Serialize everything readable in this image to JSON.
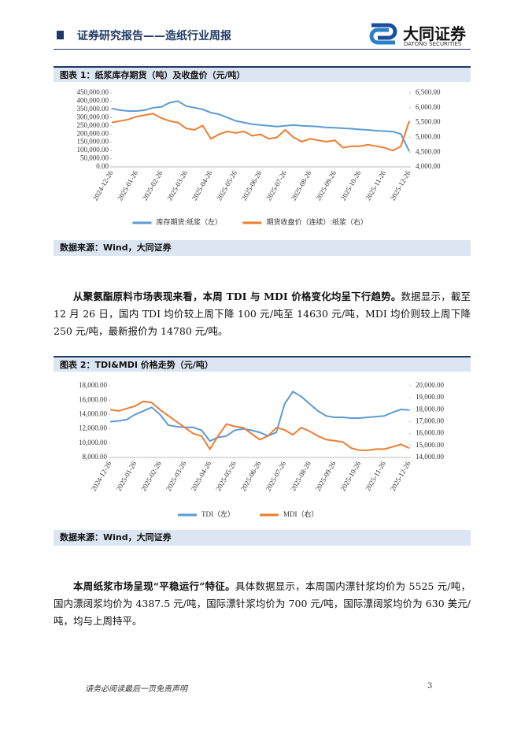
{
  "header": {
    "title": "证券研究报告——造纸行业周报",
    "brand": "大同证券",
    "brand_en": "DATONG SECURITIES"
  },
  "figures": [
    {
      "caption": "图表 1：纸浆库存期货（吨）及收盘价（元/吨）",
      "source": "数据来源：Wind，大同证券"
    },
    {
      "caption": "图表 2：TDI&MDI 价格走势（元/吨）",
      "source": "数据来源：Wind，大同证券"
    }
  ],
  "chart_data": [
    {
      "type": "line",
      "categories": [
        "2024-12-26",
        null,
        null,
        "2025-01-26",
        null,
        null,
        "2025-02-26",
        null,
        null,
        "2025-03-26",
        null,
        null,
        "2025-04-26",
        null,
        null,
        "2025-05-26",
        null,
        null,
        "2025-06-26",
        null,
        null,
        "2025-07-26",
        null,
        null,
        "2025-08-26",
        null,
        null,
        "2025-09-26",
        null,
        null,
        "2025-10-26",
        null,
        null,
        "2025-11-26",
        null,
        null,
        "2025-12-26"
      ],
      "series": [
        {
          "name": "库存期货:纸浆（左）",
          "color": "#5b9bd5",
          "axis": "y",
          "values": [
            355000,
            345000,
            340000,
            340000,
            345000,
            360000,
            365000,
            390000,
            400000,
            370000,
            360000,
            350000,
            330000,
            320000,
            300000,
            280000,
            270000,
            260000,
            255000,
            250000,
            245000,
            250000,
            255000,
            250000,
            248000,
            245000,
            240000,
            238000,
            235000,
            232000,
            228000,
            225000,
            220000,
            218000,
            215000,
            200000,
            95000
          ]
        },
        {
          "name": "期货收盘价（连续）:纸浆（右）",
          "color": "#ed7d31",
          "axis": "y2",
          "values": [
            5500,
            5550,
            5600,
            5700,
            5750,
            5800,
            5650,
            5550,
            5500,
            5300,
            5250,
            5400,
            4950,
            5100,
            5200,
            5150,
            5200,
            5050,
            5100,
            4950,
            5000,
            5250,
            5000,
            4850,
            4950,
            4900,
            4850,
            4900,
            4650,
            4700,
            4700,
            4750,
            4700,
            4650,
            4550,
            4700,
            5550
          ]
        }
      ],
      "ylim": [
        0,
        450000
      ],
      "yticks": [
        {
          "value": 0,
          "label": "0.00"
        },
        {
          "value": 50000,
          "label": "50,000.00"
        },
        {
          "value": 100000,
          "label": "100,000.00"
        },
        {
          "value": 150000,
          "label": "150,000.00"
        },
        {
          "value": 200000,
          "label": "200,000.00"
        },
        {
          "value": 250000,
          "label": "250,000.00"
        },
        {
          "value": 300000,
          "label": "300,000.00"
        },
        {
          "value": 350000,
          "label": "350,000.00"
        },
        {
          "value": 400000,
          "label": "400,000.00"
        },
        {
          "value": 450000,
          "label": "450,000.00"
        }
      ],
      "y2lim": [
        4000,
        6500
      ],
      "y2ticks": [
        {
          "value": 4000,
          "label": "4,000.00"
        },
        {
          "value": 4500,
          "label": "4,500.00"
        },
        {
          "value": 5000,
          "label": "5,000.00"
        },
        {
          "value": 5500,
          "label": "5,500.00"
        },
        {
          "value": 6000,
          "label": "6,000.00"
        },
        {
          "value": 6500,
          "label": "6,500.00"
        }
      ],
      "legend": "bottom"
    },
    {
      "type": "line",
      "categories": [
        "2024-12-26",
        null,
        null,
        "2025-01-26",
        null,
        null,
        "2025-02-26",
        null,
        null,
        "2025-03-26",
        null,
        null,
        "2025-04-26",
        null,
        null,
        "2025-05-26",
        null,
        null,
        "2025-06-26",
        null,
        null,
        "2025-07-26",
        null,
        null,
        "2025-08-26",
        null,
        null,
        "2025-09-26",
        null,
        null,
        "2025-10-26",
        null,
        null,
        "2025-11-26",
        null,
        null,
        "2025-12-26"
      ],
      "series": [
        {
          "name": "TDI（左）",
          "color": "#5b9bd5",
          "axis": "y",
          "values": [
            13000,
            13100,
            13300,
            14000,
            14500,
            15000,
            14000,
            12500,
            12300,
            12200,
            12200,
            11800,
            10300,
            10800,
            11000,
            11800,
            12000,
            11800,
            11500,
            11000,
            11500,
            15500,
            17200,
            16500,
            15500,
            14500,
            13800,
            13600,
            13600,
            13500,
            13500,
            13600,
            13700,
            13800,
            14300,
            14700,
            14630
          ]
        },
        {
          "name": "MDI（右）",
          "color": "#ed7d31",
          "axis": "y2",
          "values": [
            18000,
            17900,
            18100,
            18300,
            18700,
            18600,
            18000,
            17500,
            17000,
            16500,
            16000,
            15800,
            14700,
            15800,
            16800,
            16600,
            16500,
            16000,
            15500,
            15800,
            16500,
            16300,
            15900,
            16500,
            16200,
            15800,
            15500,
            15400,
            15300,
            14800,
            14600,
            14600,
            14700,
            14700,
            14900,
            15100,
            14780
          ]
        }
      ],
      "ylim": [
        8000,
        18000
      ],
      "yticks": [
        {
          "value": 8000,
          "label": "8,000.00"
        },
        {
          "value": 10000,
          "label": "10,000.00"
        },
        {
          "value": 12000,
          "label": "12,000.00"
        },
        {
          "value": 14000,
          "label": "14,000.00"
        },
        {
          "value": 16000,
          "label": "16,000.00"
        },
        {
          "value": 18000,
          "label": "18,000.00"
        }
      ],
      "y2lim": [
        14000,
        20000
      ],
      "y2ticks": [
        {
          "value": 14000,
          "label": "14,000.00"
        },
        {
          "value": 15000,
          "label": "15,000.00"
        },
        {
          "value": 16000,
          "label": "16,000.00"
        },
        {
          "value": 17000,
          "label": "17,000.00"
        },
        {
          "value": 18000,
          "label": "18,000.00"
        },
        {
          "value": 19000,
          "label": "19,000.00"
        },
        {
          "value": 20000,
          "label": "20,000.00"
        }
      ],
      "legend": "bottom"
    }
  ],
  "paragraphs": [
    {
      "lead": "从聚氨酯原料市场表现来看，本周 TDI 与 MDI 价格变化均呈下行趋势。",
      "body": "数据显示，截至 12 月 26 日，国内 TDI 均价较上周下降 100 元/吨至 14630 元/吨，MDI 均价则较上周下降 250 元/吨，最新报价为 14780 元/吨。"
    },
    {
      "lead": "本周纸浆市场呈现“平稳运行”特征。",
      "body": "具体数据显示，本周国内漂针浆均价为 5525 元/吨，国内漂阔浆均价为 4387.5 元/吨，国际漂针浆均价为 700 元/吨，国际漂阔浆均价为 630 美元/吨，均与上周持平。"
    }
  ],
  "footer": {
    "disclaimer": "请务必阅读最后一页免责声明",
    "page": "3"
  }
}
